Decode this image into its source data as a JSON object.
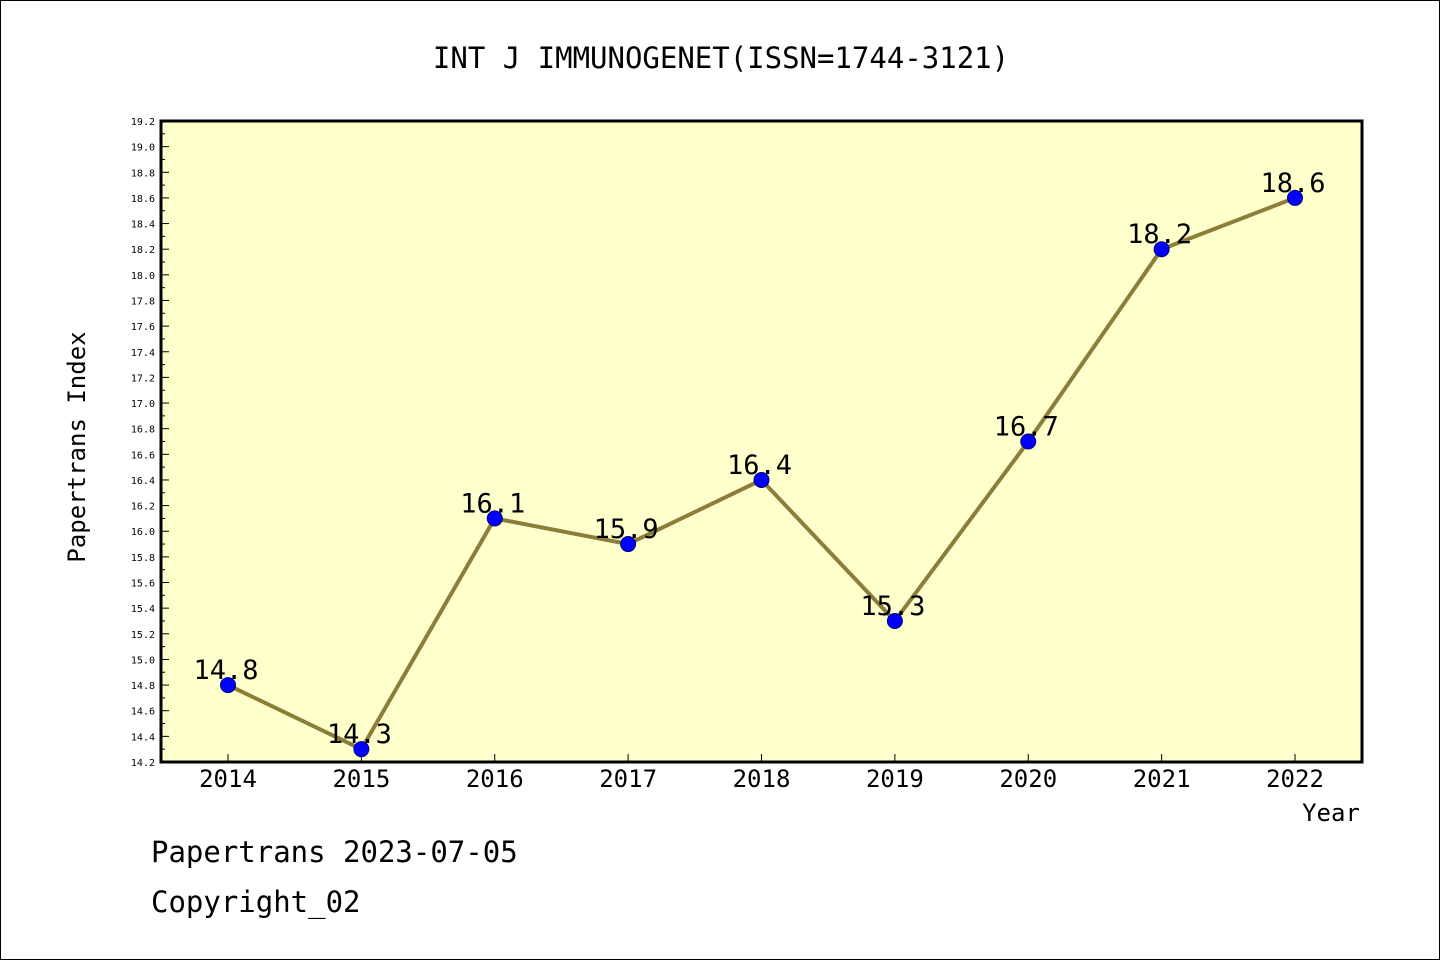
{
  "footer": {
    "line1": "Papertrans 2023-07-05",
    "line2": "Copyright_02"
  },
  "chart_data": {
    "type": "line",
    "title": "INT J IMMUNOGENET(ISSN=1744-3121)",
    "xlabel": "Year",
    "ylabel": "Papertrans Index",
    "categories": [
      "2014",
      "2015",
      "2016",
      "2017",
      "2018",
      "2019",
      "2020",
      "2021",
      "2022"
    ],
    "values": [
      14.8,
      14.3,
      16.1,
      15.9,
      16.4,
      15.3,
      16.7,
      18.2,
      18.6
    ],
    "data_labels": [
      "14.8",
      "14.3",
      "16.1",
      "15.9",
      "16.4",
      "15.3",
      "16.7",
      "18.2",
      "18.6"
    ],
    "ylim": [
      14.2,
      19.2
    ],
    "yticks": [
      "14.2",
      "14.4",
      "14.6",
      "14.8",
      "15.0",
      "15.2",
      "15.4",
      "15.6",
      "15.8",
      "16.0",
      "16.2",
      "16.4",
      "16.6",
      "16.8",
      "17.0",
      "17.2",
      "17.4",
      "17.6",
      "17.8",
      "18.0",
      "18.2",
      "18.4",
      "18.6",
      "18.8",
      "19.0",
      "19.2"
    ],
    "grid": false,
    "colors": {
      "plot_background": "#FFFFCC",
      "line": "#8B7D3A",
      "marker": "#0000FF",
      "marker_edge": "#000080"
    }
  }
}
